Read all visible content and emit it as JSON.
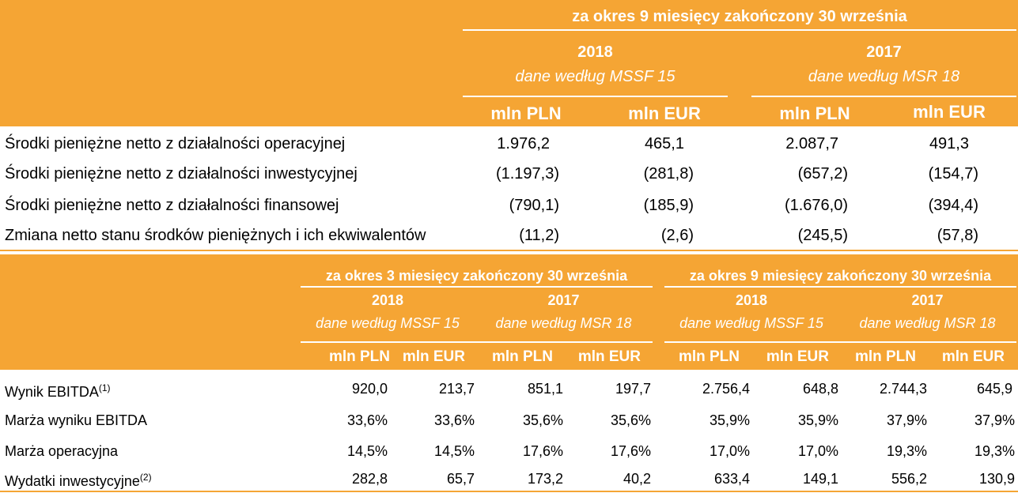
{
  "table1": {
    "period_header": "za okres 9 miesięcy zakończony 30 września",
    "years": [
      {
        "year": "2018",
        "basis": "dane według MSSF 15"
      },
      {
        "year": "2017",
        "basis": "dane według MSR 18"
      }
    ],
    "units": [
      "mln PLN",
      "mln EUR",
      "mln PLN",
      "mln EUR"
    ],
    "rows": [
      {
        "label": "Środki pieniężne netto z działalności operacyjnej",
        "values": [
          "1.976,2",
          "465,1",
          "2.087,7",
          "491,3"
        ]
      },
      {
        "label": "Środki pieniężne netto z działalności inwestycyjnej",
        "values": [
          "(1.197,3)",
          "(281,8)",
          "(657,2)",
          "(154,7)"
        ]
      },
      {
        "label": "Środki pieniężne netto z działalności finansowej",
        "values": [
          "(790,1)",
          "(185,9)",
          "(1.676,0)",
          "(394,4)"
        ]
      },
      {
        "label": "Zmiana netto stanu środków pieniężnych i ich ekwiwalentów",
        "values": [
          "(11,2)",
          "(2,6)",
          "(245,5)",
          "(57,8)"
        ]
      }
    ]
  },
  "table2": {
    "period_headers": [
      "za okres 3 miesięcy zakończony 30 września",
      "za okres 9 miesięcy zakończony 30 września"
    ],
    "years": [
      {
        "year": "2018",
        "basis": "dane według MSSF 15"
      },
      {
        "year": "2017",
        "basis": "dane według MSR 18"
      },
      {
        "year": "2018",
        "basis": "dane według MSSF 15"
      },
      {
        "year": "2017",
        "basis": "dane według MSR 18"
      }
    ],
    "units": [
      "mln PLN",
      "mln EUR",
      "mln PLN",
      "mln EUR",
      "mln PLN",
      "mln EUR",
      "mln PLN",
      "mln EUR"
    ],
    "rows": [
      {
        "label": "Wynik EBITDA",
        "sup": "(1)",
        "values": [
          "920,0",
          "213,7",
          "851,1",
          "197,7",
          "2.756,4",
          "648,8",
          "2.744,3",
          "645,9"
        ]
      },
      {
        "label": "Marża wyniku EBITDA",
        "sup": "",
        "values": [
          "33,6%",
          "33,6%",
          "35,6%",
          "35,6%",
          "35,9%",
          "35,9%",
          "37,9%",
          "37,9%"
        ]
      },
      {
        "label": "Marża operacyjna",
        "sup": "",
        "values": [
          "14,5%",
          "14,5%",
          "17,6%",
          "17,6%",
          "17,0%",
          "17,0%",
          "19,3%",
          "19,3%"
        ]
      },
      {
        "label": "Wydatki inwestycyjne",
        "sup": "(2)",
        "values": [
          "282,8",
          "65,7",
          "173,2",
          "40,2",
          "633,4",
          "149,1",
          "556,2",
          "130,9"
        ]
      }
    ]
  }
}
